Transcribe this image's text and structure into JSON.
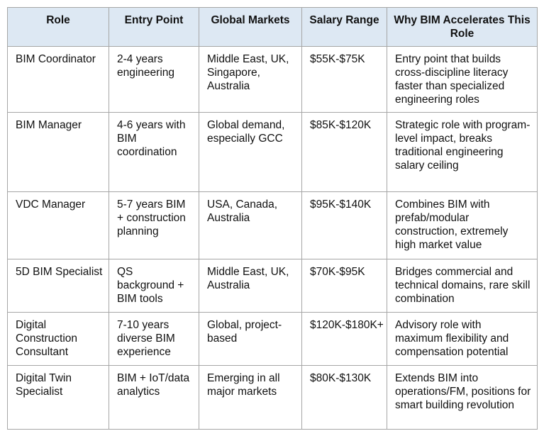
{
  "table": {
    "headers": [
      "Role",
      "Entry Point",
      "Global Markets",
      "Salary Range",
      "Why BIM Accelerates This Role"
    ],
    "rows": [
      [
        "BIM Coordinator",
        "2-4 years engineering",
        "Middle East, UK, Singapore, Australia",
        "$55K-$75K",
        "Entry point that builds cross-discipline literacy faster than specialized engineering roles"
      ],
      [
        "BIM Manager",
        "4-6 years with BIM coordination",
        "Global demand, especially GCC",
        "$85K-$120K",
        "Strategic role with program-level impact, breaks traditional engineering salary ceiling"
      ],
      [
        "VDC Manager",
        "5-7 years BIM + construction planning",
        "USA, Canada, Australia",
        "$95K-$140K",
        "Combines BIM with prefab/modular construction, extremely high market value"
      ],
      [
        "5D BIM Specialist",
        "QS background + BIM tools",
        "Middle East, UK, Australia",
        "$70K-$95K",
        "Bridges commercial and technical domains, rare skill combination"
      ],
      [
        "Digital Construction Consultant",
        "7-10 years diverse BIM experience",
        "Global, project-based",
        "$120K-$180K+",
        "Advisory role with maximum flexibility and compensation potential"
      ],
      [
        "Digital Twin Specialist",
        "BIM + IoT/data analytics",
        "Emerging in all major markets",
        "$80K-$130K",
        "Extends BIM into operations/FM, positions for smart building revolution"
      ]
    ]
  }
}
